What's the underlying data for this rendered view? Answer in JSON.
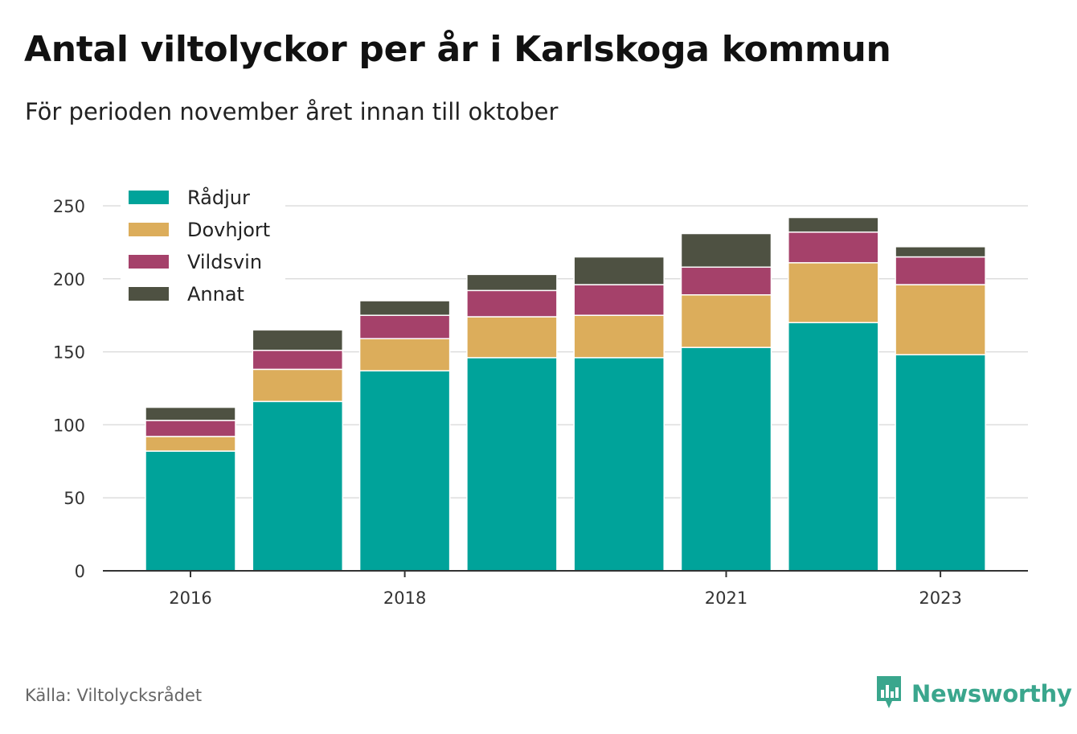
{
  "title": "Antal viltolyckor per år i Karlskoga kommun",
  "subtitle": "För perioden november året innan till oktober",
  "source": "Källa: Viltolycksrådet",
  "brand": {
    "name": "Newsworthy",
    "icon": "newsworthy-logo-icon",
    "color": "#3aa68d"
  },
  "colors": {
    "Rådjur": "#00a39a",
    "Dovhjort": "#dcad5b",
    "Vildsvin": "#a5416a",
    "Annat": "#4e5142",
    "grid": "#dddddd",
    "axis": "#333333"
  },
  "chart_data": {
    "type": "bar",
    "stacked": true,
    "categories": [
      "2016",
      "2017",
      "2018",
      "2019",
      "2020",
      "2021",
      "2022",
      "2023"
    ],
    "x_tick_labels": [
      "2016",
      "2018",
      "2021",
      "2023"
    ],
    "series": [
      {
        "name": "Rådjur",
        "values": [
          82,
          116,
          137,
          146,
          146,
          153,
          170,
          148
        ]
      },
      {
        "name": "Dovhjort",
        "values": [
          10,
          22,
          22,
          28,
          29,
          36,
          41,
          48
        ]
      },
      {
        "name": "Vildsvin",
        "values": [
          11,
          13,
          16,
          18,
          21,
          19,
          21,
          19
        ]
      },
      {
        "name": "Annat",
        "values": [
          9,
          14,
          10,
          11,
          19,
          23,
          10,
          7
        ]
      }
    ],
    "ylim": [
      0,
      250
    ],
    "yticks": [
      0,
      50,
      100,
      150,
      200,
      250
    ],
    "grid": true,
    "legend_position": "top-left",
    "xlabel": "",
    "ylabel": ""
  }
}
